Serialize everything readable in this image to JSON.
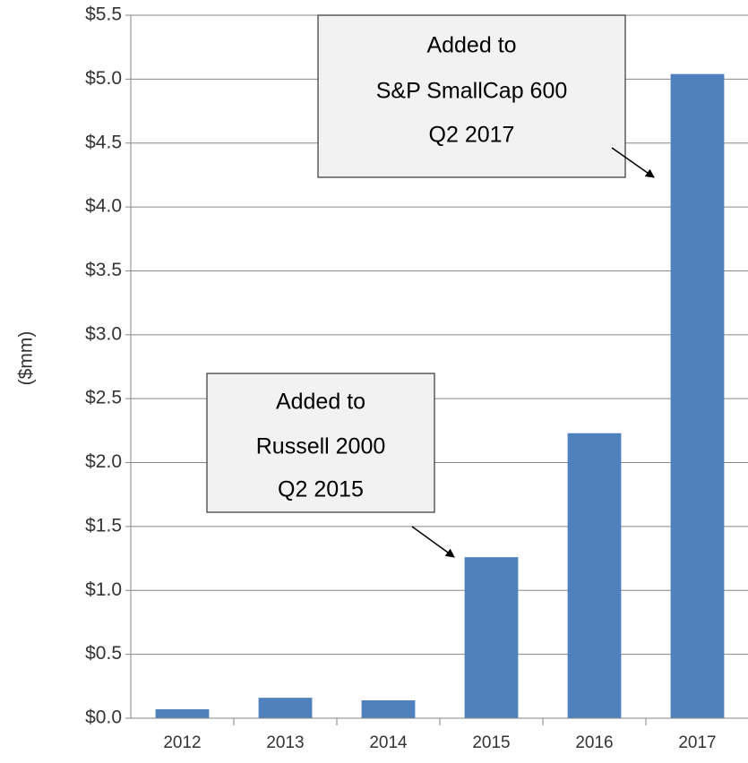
{
  "chart_data": {
    "type": "bar",
    "y_label": "($mm)",
    "categories": [
      "2012",
      "2013",
      "2014",
      "2015",
      "2016",
      "2017"
    ],
    "values": [
      0.07,
      0.16,
      0.14,
      1.26,
      2.23,
      5.04
    ],
    "color": "#4f81bd",
    "ylim": [
      0,
      5.5
    ],
    "yticks": [
      {
        "value": 0,
        "label": "$0.0"
      },
      {
        "value": 0.5,
        "label": "$0.5"
      },
      {
        "value": 1,
        "label": "$1.0"
      },
      {
        "value": 1.5,
        "label": "$1.5"
      },
      {
        "value": 2,
        "label": "$2.0"
      },
      {
        "value": 2.5,
        "label": "$2.5"
      },
      {
        "value": 3,
        "label": "$3.0"
      },
      {
        "value": 3.5,
        "label": "$3.5"
      },
      {
        "value": 4,
        "label": "$4.0"
      },
      {
        "value": 4.5,
        "label": "$4.5"
      },
      {
        "value": 5,
        "label": "$5.0"
      },
      {
        "value": 5.5,
        "label": "$5.5"
      }
    ],
    "grid": true,
    "annotations": [
      {
        "lines": [
          "Added to",
          "S&P SmallCap 600",
          "Q2 2017"
        ]
      },
      {
        "lines": [
          "Added to",
          "Russell 2000",
          "Q2 2015"
        ]
      }
    ]
  }
}
